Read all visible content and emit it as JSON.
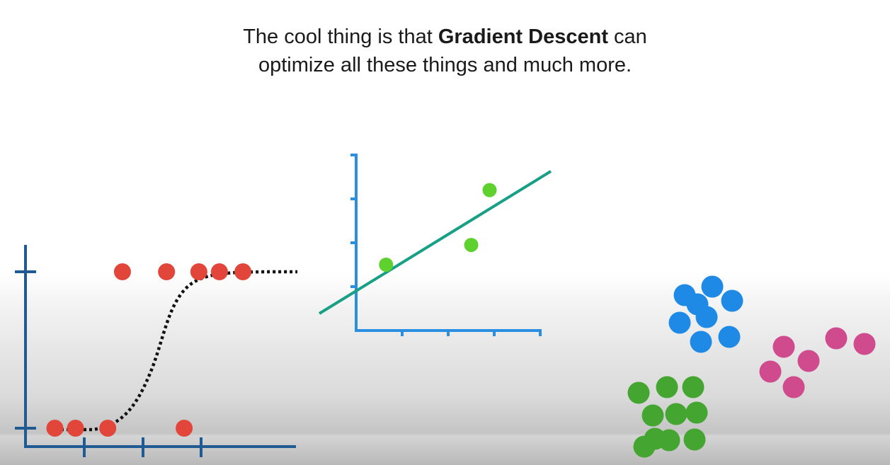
{
  "caption": {
    "line1_before": "The cool thing is that ",
    "line1_bold": "Gradient Descent",
    "line1_after": " can",
    "line2": "optimize all these things and much more."
  },
  "colors": {
    "logistic_axis": "#1f5a92",
    "logistic_points": "#e2463a",
    "logistic_curve": "#111111",
    "linear_axis": "#2a8fe0",
    "linear_points": "#5ed12e",
    "linear_fit": "#17a085",
    "cluster_blue": "#1f8ae6",
    "cluster_pink": "#d04a8e",
    "cluster_green": "#44a630"
  },
  "logistic_plot": {
    "description_icon": "logistic-regression-icon",
    "points": [
      {
        "x": 0.5,
        "y": 0
      },
      {
        "x": 0.85,
        "y": 0
      },
      {
        "x": 1.4,
        "y": 0
      },
      {
        "x": 2.7,
        "y": 0
      },
      {
        "x": 1.65,
        "y": 1
      },
      {
        "x": 2.4,
        "y": 1
      },
      {
        "x": 2.95,
        "y": 1
      },
      {
        "x": 3.3,
        "y": 1
      },
      {
        "x": 3.7,
        "y": 1
      }
    ]
  },
  "linear_plot": {
    "description_icon": "linear-regression-icon",
    "points": [
      {
        "x": 0.65,
        "y": 1.5
      },
      {
        "x": 2.5,
        "y": 1.95
      },
      {
        "x": 2.9,
        "y": 3.2
      }
    ],
    "fit": {
      "intercept": 0.95,
      "slope": 0.75
    }
  },
  "clusters": {
    "blue_count": 8,
    "pink_count": 6,
    "green_count": 10
  }
}
